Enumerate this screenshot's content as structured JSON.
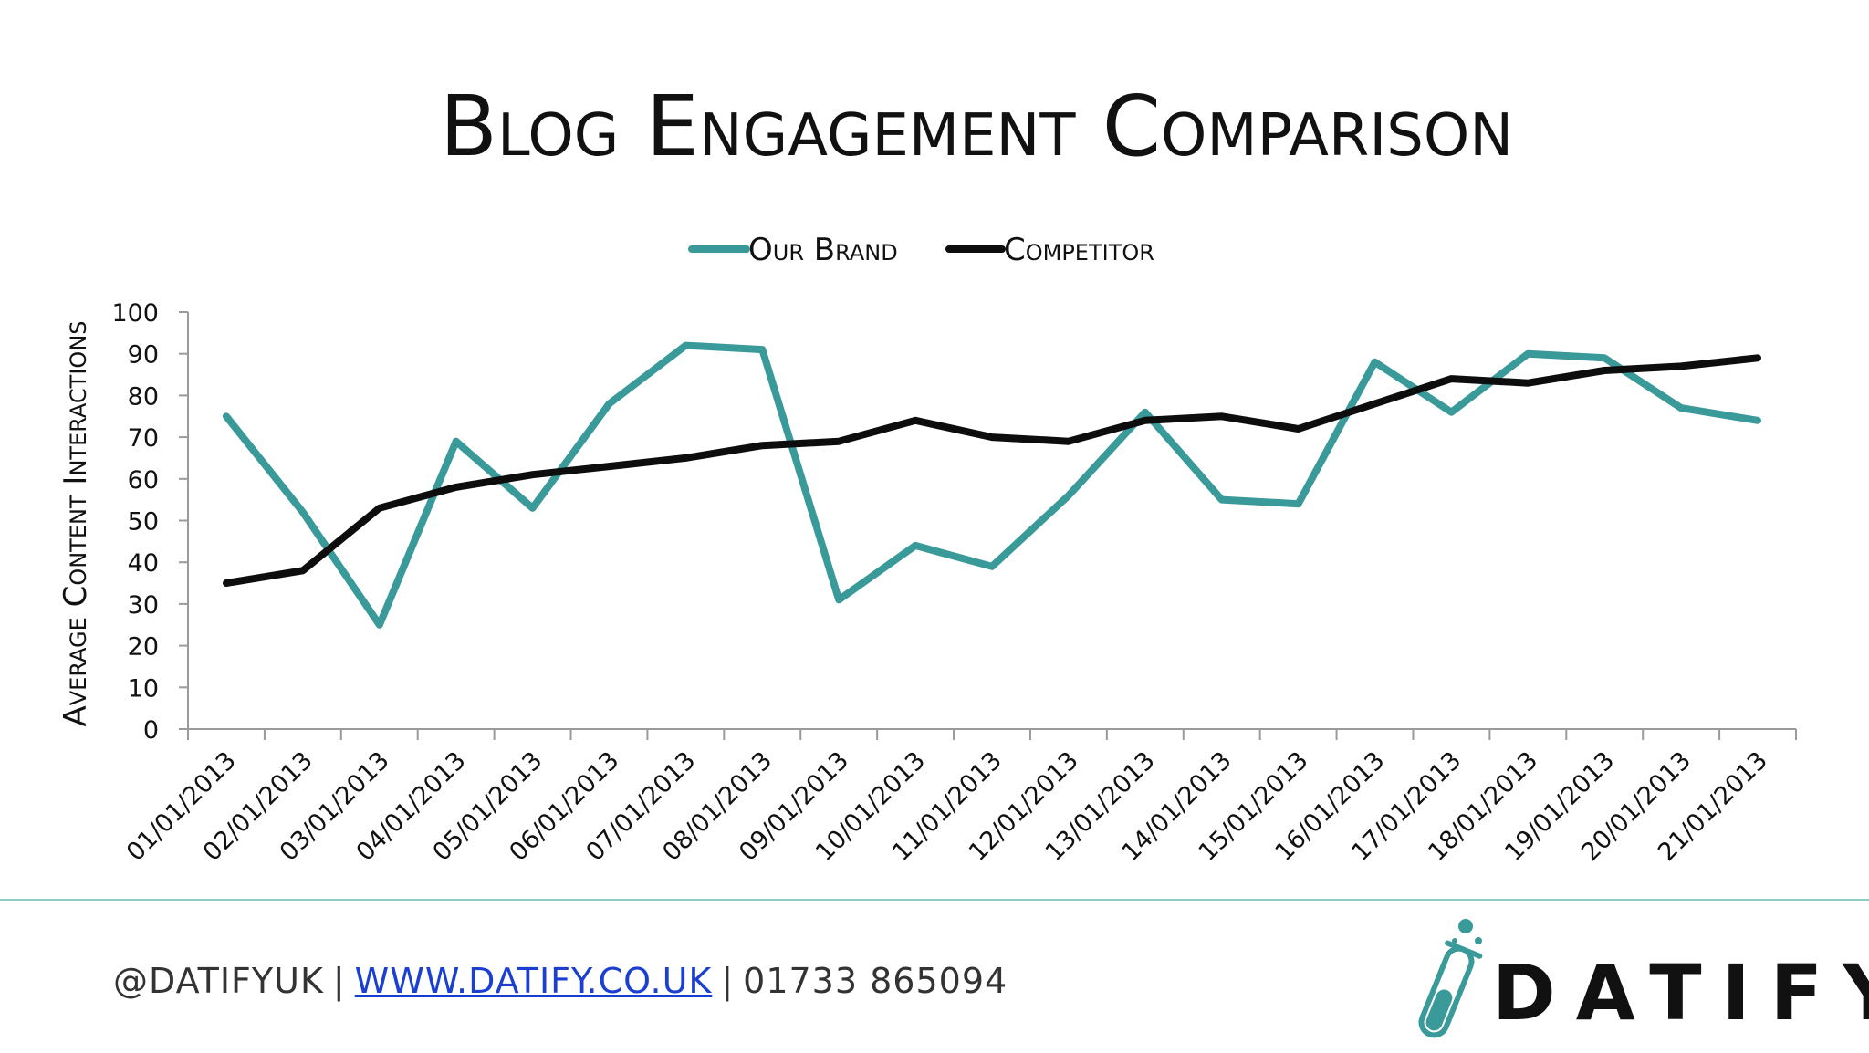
{
  "chart_data": {
    "type": "line",
    "title": "Blog Engagement Comparison",
    "ylabel": "Average Content Interactions",
    "xlabel": "",
    "ylim": [
      0,
      100
    ],
    "yticks": [
      0,
      10,
      20,
      30,
      40,
      50,
      60,
      70,
      80,
      90,
      100
    ],
    "grid": false,
    "legend_position": "top-center",
    "categories": [
      "01/01/2013",
      "02/01/2013",
      "03/01/2013",
      "04/01/2013",
      "05/01/2013",
      "06/01/2013",
      "07/01/2013",
      "08/01/2013",
      "09/01/2013",
      "10/01/2013",
      "11/01/2013",
      "12/01/2013",
      "13/01/2013",
      "14/01/2013",
      "15/01/2013",
      "16/01/2013",
      "17/01/2013",
      "18/01/2013",
      "19/01/2013",
      "20/01/2013",
      "21/01/2013"
    ],
    "series": [
      {
        "name": "Our Brand",
        "color": "#3a9a9a",
        "values": [
          75,
          52,
          25,
          69,
          53,
          78,
          92,
          91,
          31,
          44,
          39,
          56,
          76,
          55,
          54,
          88,
          76,
          90,
          89,
          77,
          74
        ]
      },
      {
        "name": "Competitor",
        "color": "#0d0d0d",
        "values": [
          35,
          38,
          53,
          58,
          61,
          63,
          65,
          68,
          69,
          74,
          70,
          69,
          74,
          75,
          72,
          78,
          84,
          83,
          86,
          87,
          89
        ]
      }
    ]
  },
  "footer": {
    "handle": "@DATIFYUK",
    "separator": "|",
    "website": "WWW.DATIFY.CO.UK",
    "phone": "01733 865094"
  },
  "logo": {
    "text": "DATIFY",
    "icon": "test-tube-icon",
    "accent": "#3a9a9a"
  }
}
